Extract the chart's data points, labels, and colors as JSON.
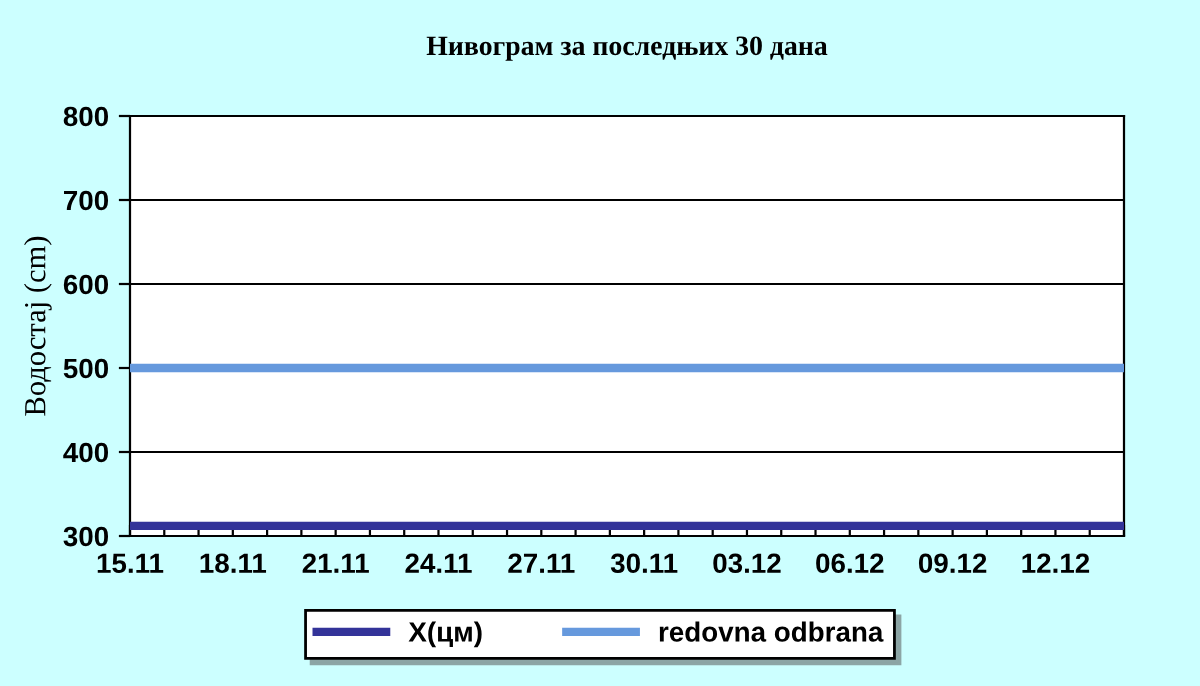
{
  "chart_data": {
    "type": "line",
    "title": "Нивограм за последњих 30 дана",
    "ylabel": "Водостај (cm)",
    "categories": [
      "15.11",
      null,
      null,
      "18.11",
      null,
      null,
      "21.11",
      null,
      null,
      "24.11",
      null,
      null,
      "27.11",
      null,
      null,
      "30.11",
      null,
      null,
      "03.12",
      null,
      null,
      "06.12",
      null,
      null,
      "09.12",
      null,
      null,
      "12.12",
      null,
      null
    ],
    "series": [
      {
        "name": "X(цм)",
        "color": "#333399",
        "values": [
          312,
          312,
          312,
          312,
          312,
          312,
          312,
          312,
          312,
          312,
          312,
          312,
          312,
          312,
          312,
          312,
          312,
          312,
          312,
          312,
          312,
          312,
          312,
          312,
          312,
          312,
          312,
          312,
          312,
          312
        ]
      },
      {
        "name": "redovna odbrana",
        "color": "#6699dd",
        "values": [
          500,
          500,
          500,
          500,
          500,
          500,
          500,
          500,
          500,
          500,
          500,
          500,
          500,
          500,
          500,
          500,
          500,
          500,
          500,
          500,
          500,
          500,
          500,
          500,
          500,
          500,
          500,
          500,
          500,
          500
        ]
      }
    ],
    "ylim": [
      300,
      800
    ],
    "yticks": [
      300,
      400,
      500,
      600,
      700,
      800
    ],
    "grid": "y",
    "legend": "bottom",
    "marker": "none",
    "line_style": "solid"
  }
}
